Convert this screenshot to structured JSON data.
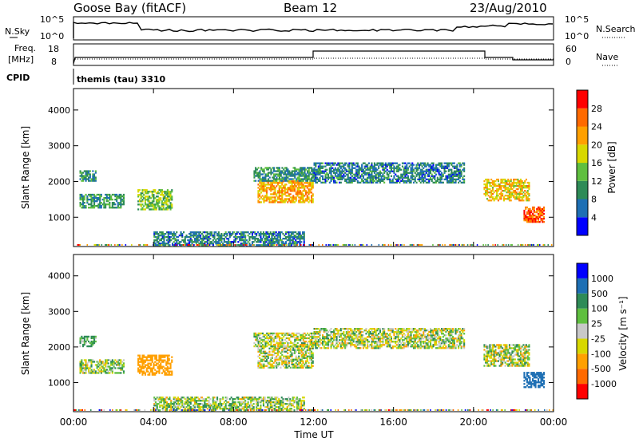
{
  "header": {
    "station": "Goose Bay (fitACF)",
    "beam": "Beam 12",
    "date": "23/Aug/2010"
  },
  "aux_panels": {
    "nsky_label": "N.Sky",
    "nsearch_label": "N.Search",
    "freq_label_1": "Freq.",
    "freq_label_2": "[MHz]",
    "nave_label": "Nave",
    "cpid_label": "CPID",
    "cpid_value": "themis (tau) 3310",
    "nsky_ticks": [
      "10^5",
      "10^0"
    ],
    "nsearch_ticks": [
      "10^5",
      "10^0"
    ],
    "freq_ticks": [
      "18",
      "8"
    ],
    "nave_ticks": [
      "60",
      "0"
    ]
  },
  "colors": {
    "power": [
      "#0000ff",
      "#1e6fb4",
      "#2e8b57",
      "#5fbf3f",
      "#d8d800",
      "#ffa000",
      "#ff6a00",
      "#ff0000"
    ],
    "velocity": [
      "#ff0000",
      "#ff6a00",
      "#ffa000",
      "#d8d800",
      "#c8c8c8",
      "#5fbf3f",
      "#2e8b57",
      "#1e6fb4",
      "#0000ff"
    ]
  },
  "chart_data": [
    {
      "type": "heatmap",
      "name": "power",
      "xlabel": "",
      "ylabel": "Slant Range [km]",
      "colorbar_label": "Power [dB]",
      "colorbar_ticks": [
        "4",
        "8",
        "12",
        "16",
        "20",
        "24",
        "28"
      ],
      "xlim": [
        0,
        24
      ],
      "ylim": [
        180,
        4600
      ],
      "yticks": [
        "1000",
        "2000",
        "3000",
        "4000"
      ],
      "patches": [
        {
          "t": [
            0.3,
            1.1
          ],
          "r": [
            2000,
            2300
          ],
          "v": 10
        },
        {
          "t": [
            0.3,
            2.5
          ],
          "r": [
            1250,
            1650
          ],
          "v": 10
        },
        {
          "t": [
            3.2,
            4.9
          ],
          "r": [
            1200,
            1750
          ],
          "v": 14
        },
        {
          "t": [
            4.0,
            11.5
          ],
          "r": [
            200,
            600
          ],
          "v": 8
        },
        {
          "t": [
            9.2,
            12.0
          ],
          "r": [
            1400,
            2000
          ],
          "v": 22
        },
        {
          "t": [
            9.0,
            12.0
          ],
          "r": [
            2000,
            2400
          ],
          "v": 10
        },
        {
          "t": [
            12.0,
            19.5
          ],
          "r": [
            1950,
            2500
          ],
          "v": 8
        },
        {
          "t": [
            20.5,
            22.8
          ],
          "r": [
            1450,
            2050
          ],
          "v": 20
        },
        {
          "t": [
            22.5,
            23.5
          ],
          "r": [
            850,
            1300
          ],
          "v": 26
        }
      ]
    },
    {
      "type": "heatmap",
      "name": "velocity",
      "xlabel": "Time UT",
      "ylabel": "Slant Range [km]",
      "colorbar_label": "Velocity [m s⁻¹]",
      "colorbar_ticks": [
        "-1000",
        "-500",
        "-100",
        "-25",
        "25",
        "100",
        "500",
        "1000"
      ],
      "xlim": [
        0,
        24
      ],
      "xticks": [
        "00:00",
        "04:00",
        "08:00",
        "12:00",
        "16:00",
        "20:00",
        "00:00"
      ],
      "ylim": [
        180,
        4600
      ],
      "yticks": [
        "1000",
        "2000",
        "3000",
        "4000"
      ],
      "patches": [
        {
          "t": [
            0.3,
            1.1
          ],
          "r": [
            2000,
            2300
          ],
          "v": 150
        },
        {
          "t": [
            0.3,
            2.5
          ],
          "r": [
            1250,
            1650
          ],
          "v": 20
        },
        {
          "t": [
            3.2,
            4.9
          ],
          "r": [
            1200,
            1750
          ],
          "v": -300
        },
        {
          "t": [
            4.0,
            11.5
          ],
          "r": [
            200,
            600
          ],
          "v": 30
        },
        {
          "t": [
            9.2,
            12.0
          ],
          "r": [
            1400,
            2000
          ],
          "v": 0
        },
        {
          "t": [
            9.0,
            12.0
          ],
          "r": [
            2000,
            2400
          ],
          "v": 0
        },
        {
          "t": [
            12.0,
            19.5
          ],
          "r": [
            1950,
            2500
          ],
          "v": 0
        },
        {
          "t": [
            20.5,
            22.8
          ],
          "r": [
            1450,
            2050
          ],
          "v": 0
        },
        {
          "t": [
            22.5,
            23.5
          ],
          "r": [
            850,
            1300
          ],
          "v": 700
        }
      ]
    }
  ]
}
